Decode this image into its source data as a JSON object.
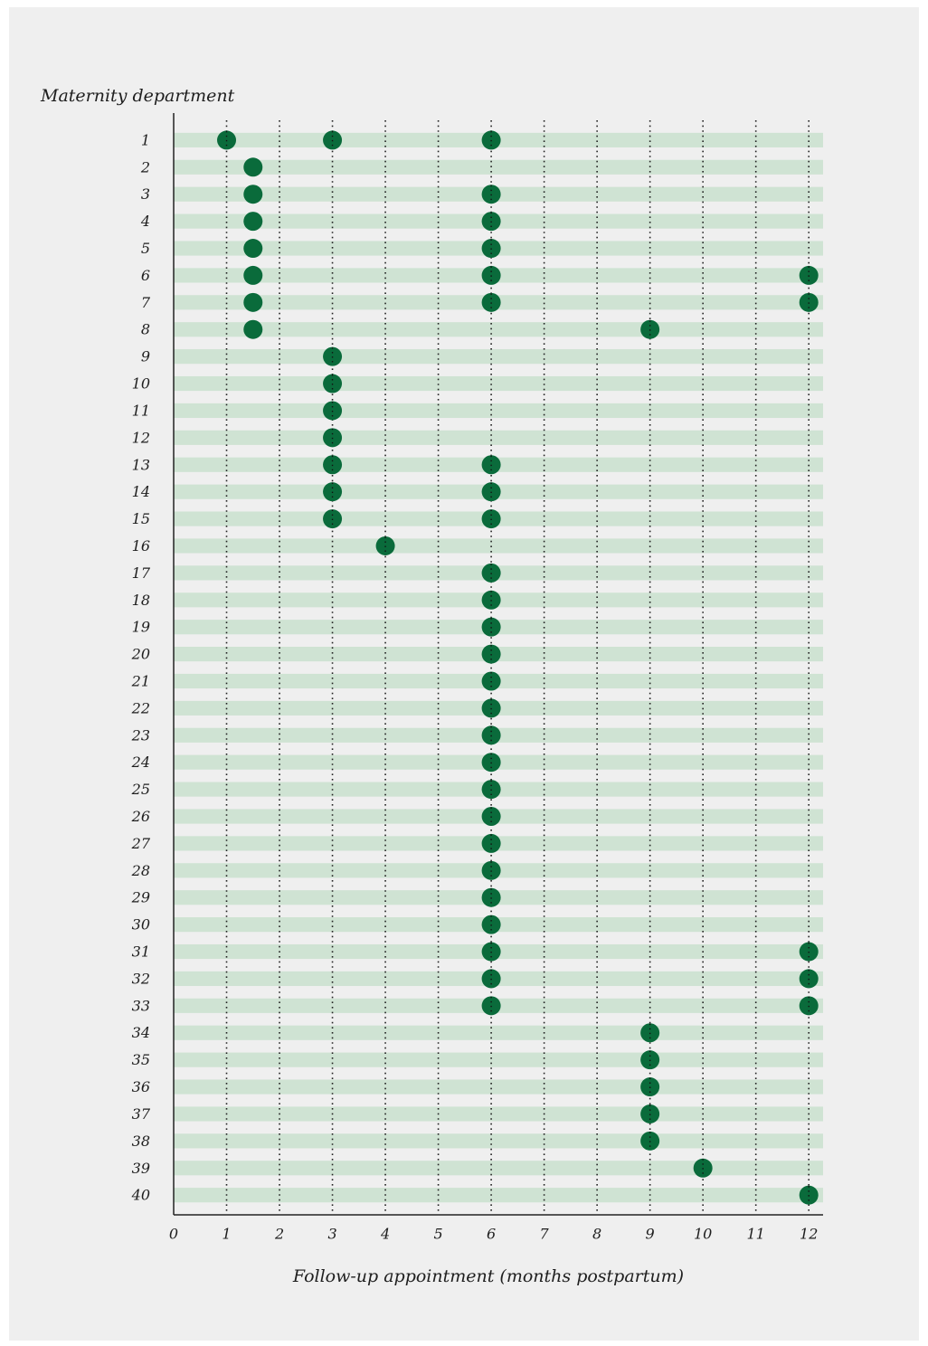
{
  "chart_data": {
    "type": "scatter",
    "y_axis_label": "Maternity department",
    "x_axis_label": "Follow-up appointment (months postpartum)",
    "x": [
      1,
      3,
      6,
      1.5,
      1.5,
      6,
      1.5,
      6,
      1.5,
      6,
      1.5,
      6,
      12,
      1.5,
      6,
      12,
      1.5,
      9,
      3,
      3,
      3,
      3,
      3,
      6,
      3,
      6,
      3,
      6,
      4,
      6,
      6,
      6,
      6,
      6,
      6,
      6,
      6,
      6,
      6,
      6,
      6,
      6,
      6,
      6,
      12,
      6,
      12,
      6,
      12,
      9,
      9,
      9,
      9,
      9,
      10,
      12
    ],
    "y": [
      1,
      1,
      1,
      2,
      3,
      3,
      4,
      4,
      5,
      5,
      6,
      6,
      6,
      7,
      7,
      7,
      8,
      8,
      9,
      10,
      11,
      12,
      13,
      13,
      14,
      14,
      15,
      15,
      16,
      17,
      18,
      19,
      20,
      21,
      22,
      23,
      24,
      25,
      26,
      27,
      28,
      29,
      30,
      31,
      31,
      32,
      32,
      33,
      33,
      34,
      35,
      36,
      37,
      38,
      39,
      40
    ],
    "color": "#0a6b3b",
    "band_color": "#cfe3d3",
    "xlim": [
      0,
      12.27
    ],
    "xticks": [
      0,
      1,
      2,
      3,
      4,
      5,
      6,
      7,
      8,
      9,
      10,
      11,
      12
    ],
    "ylim": [
      0,
      40.73
    ],
    "y_inverted": true,
    "yticks": [
      1,
      2,
      3,
      4,
      5,
      6,
      7,
      8,
      9,
      10,
      11,
      12,
      13,
      14,
      15,
      16,
      17,
      18,
      19,
      20,
      21,
      22,
      23,
      24,
      25,
      26,
      27,
      28,
      29,
      30,
      31,
      32,
      33,
      34,
      35,
      36,
      37,
      38,
      39,
      40
    ],
    "grid": "x"
  }
}
